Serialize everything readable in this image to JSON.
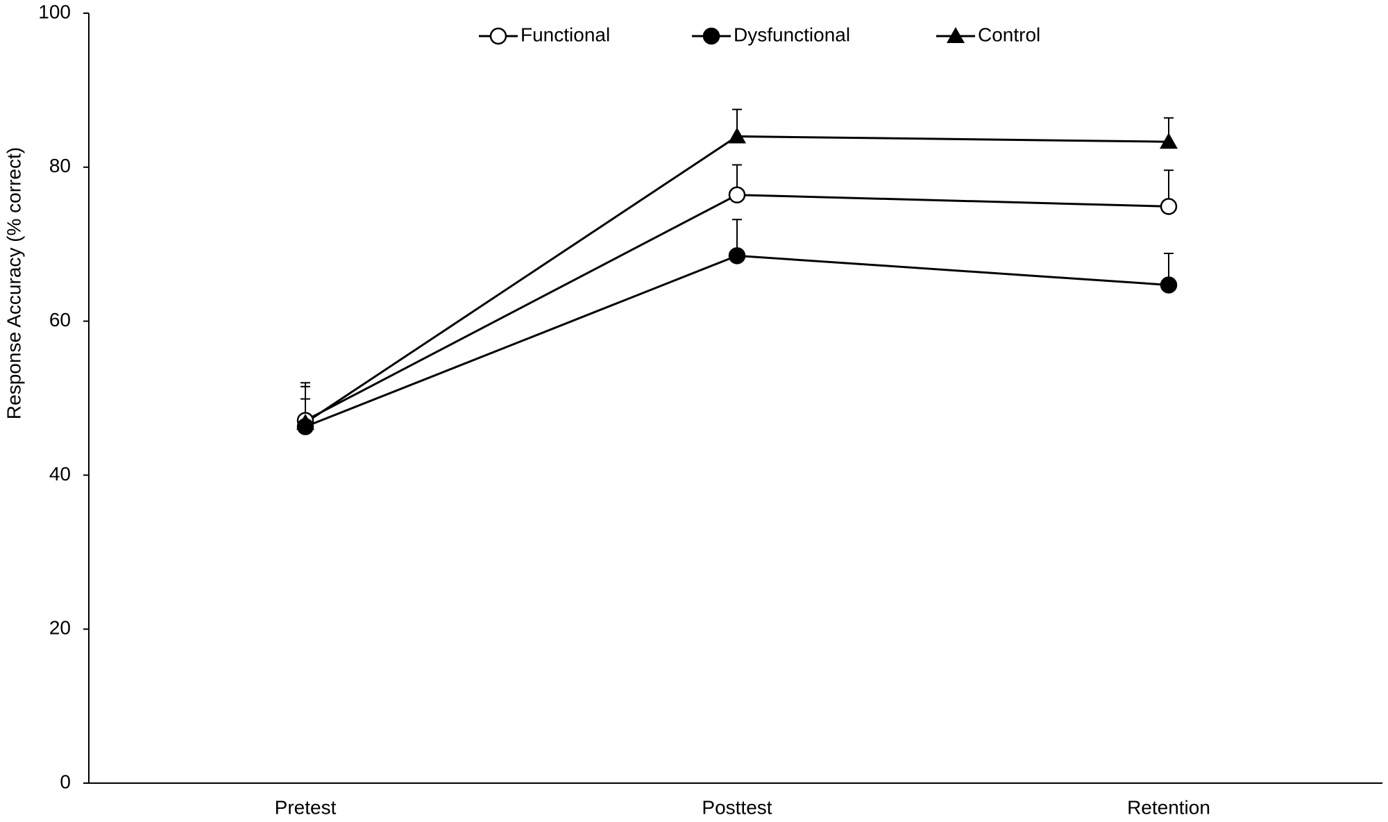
{
  "chart_data": {
    "type": "line",
    "y_label": "Response Accuracy (% correct)",
    "categories": [
      "Pretest",
      "Posttest",
      "Retention"
    ],
    "series": [
      {
        "name": "Functional",
        "color": "#000000",
        "marker": "open-circle",
        "values": [
          47.1,
          76.4,
          74.9
        ],
        "errors": [
          4.9,
          3.9,
          4.7
        ]
      },
      {
        "name": "Dysfunctional",
        "color": "#000000",
        "marker": "circle",
        "values": [
          46.3,
          68.5,
          64.7
        ],
        "errors": [
          3.6,
          4.7,
          4.1
        ]
      },
      {
        "name": "Control",
        "color": "#000000",
        "marker": "triangle",
        "values": [
          46.8,
          84.0,
          83.3
        ],
        "errors": [
          4.7,
          3.5,
          3.1
        ]
      }
    ],
    "ylim": [
      0,
      100
    ],
    "yticks": [
      0,
      20,
      40,
      60,
      80,
      100
    ],
    "legend": "top"
  }
}
